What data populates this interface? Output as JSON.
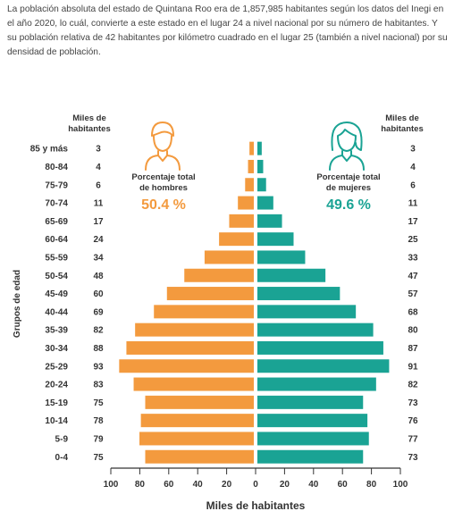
{
  "intro_text": "La población absoluta del estado de Quintana Roo era de 1,857,985 habitantes según los datos del Inegi en el año 2020, lo cuál, convierte a este estado en el lugar 24 a nivel nacional por su número de habitantes. Y su población relativa de 42 habitantes por kilómetro cuadrado en el lugar 25 (también a nivel nacional) por su densidad de población.",
  "chart_data": {
    "type": "bar",
    "orientation": "horizontal-pyramid",
    "ylabel": "Grupos de edad",
    "xlabel": "Miles de habitantes",
    "left_header": [
      "Miles de",
      "habitantes"
    ],
    "right_header": [
      "Miles de",
      "habitantes"
    ],
    "categories": [
      "85 y más",
      "80-84",
      "75-79",
      "70-74",
      "65-69",
      "60-64",
      "55-59",
      "50-54",
      "45-49",
      "40-44",
      "35-39",
      "30-34",
      "25-29",
      "20-24",
      "15-19",
      "10-14",
      "5-9",
      "0-4"
    ],
    "series": [
      {
        "values": [
          3,
          4,
          6,
          11,
          17,
          24,
          34,
          48,
          60,
          69,
          82,
          88,
          93,
          83,
          75,
          78,
          79,
          75
        ],
        "color": "#f39a3e",
        "side": "left"
      },
      {
        "values": [
          3,
          4,
          6,
          11,
          17,
          25,
          33,
          47,
          57,
          68,
          80,
          87,
          91,
          82,
          73,
          76,
          77,
          73
        ],
        "color": "#1aa394",
        "side": "right"
      }
    ],
    "xlim": [
      0,
      100
    ],
    "x_ticks_left": [
      "100",
      "80",
      "60",
      "40",
      "20"
    ],
    "x_ticks_center": "0",
    "x_ticks_right": [
      "20",
      "40",
      "60",
      "80",
      "100"
    ],
    "annotations": {
      "men": {
        "label": [
          "Porcentaje total",
          "de hombres"
        ],
        "value": "50.4 %",
        "color": "#f39a3e",
        "icon": "man-icon"
      },
      "women": {
        "label": [
          "Porcentaje total",
          "de mujeres"
        ],
        "value": "49.6 %",
        "color": "#1aa394",
        "icon": "woman-icon"
      }
    }
  }
}
